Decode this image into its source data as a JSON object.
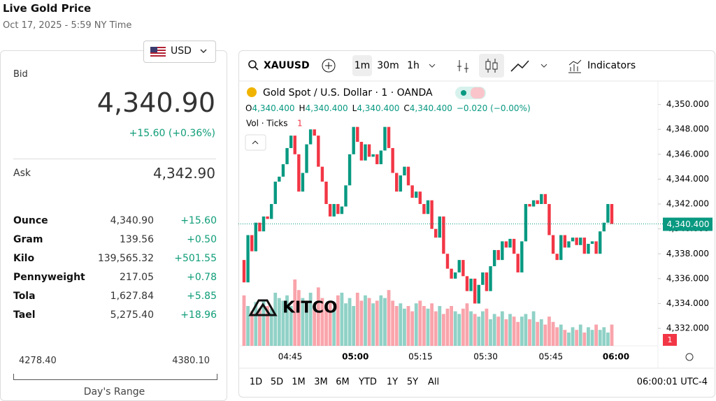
{
  "header": {
    "title": "Live Gold Price",
    "date": "Oct 17, 2025 - 5:59 NY Time"
  },
  "quote": {
    "currency": "USD",
    "bid_label": "Bid",
    "bid": "4,340.90",
    "change": "+15.60 (+0.36%)",
    "ask_label": "Ask",
    "ask": "4,342.90",
    "rows": [
      [
        "Ounce",
        "4,340.90",
        "+15.60"
      ],
      [
        "Gram",
        "139.56",
        "+0.50"
      ],
      [
        "Kilo",
        "139,565.32",
        "+501.55"
      ],
      [
        "Pennyweight",
        "217.05",
        "+0.78"
      ],
      [
        "Tola",
        "1,627.84",
        "+5.85"
      ],
      [
        "Tael",
        "5,275.40",
        "+18.96"
      ]
    ],
    "range_low": "4278.40",
    "range_high": "4380.10",
    "range_label": "Day's Range"
  },
  "chart": {
    "type": "candlestick",
    "symbol": "XAUUSD",
    "intervals": [
      "1m",
      "30m",
      "1h"
    ],
    "indicators": "Indicators",
    "title": "Gold Spot / U.S. Dollar · 1 · OANDA",
    "ohlc": [
      [
        "O",
        "4,340.400"
      ],
      [
        "H",
        "4,340.400"
      ],
      [
        "L",
        "4,340.400"
      ],
      [
        "C",
        "4,340.400"
      ]
    ],
    "ohlc_change": "−0.020 (−0.00%)",
    "vol_label": "Vol · Ticks",
    "vol_value": "1",
    "logo": "KITCO",
    "ylim": [
      4330.6,
      4352.0
    ],
    "yticks": [
      {
        "value": 4350,
        "label": "4,350.000"
      },
      {
        "value": 4348,
        "label": "4,348.000"
      },
      {
        "value": 4346,
        "label": "4,346.000"
      },
      {
        "value": 4344,
        "label": "4,344.000"
      },
      {
        "value": 4342,
        "label": "4,342.000"
      },
      {
        "value": 4340,
        "label": "4,340.000"
      },
      {
        "value": 4338,
        "label": "4,338.000"
      },
      {
        "value": 4336,
        "label": "4,336.000"
      },
      {
        "value": 4334,
        "label": "4,334.000"
      },
      {
        "value": 4332,
        "label": "4,332.000"
      }
    ],
    "last": {
      "value": 4340.4,
      "label": "4,340.400"
    },
    "times": [
      "04:45",
      "05:00",
      "05:15",
      "05:30",
      "05:45",
      "06:00"
    ],
    "up_color": "#089981",
    "down_color": "#f23645",
    "open": 4337.5,
    "closes": [
      4335.7,
      4339.5,
      4338.2,
      4340.5,
      4339.8,
      4341.0,
      4340.8,
      4342.0,
      4343.8,
      4344.2,
      4345.2,
      4346.5,
      4347.5,
      4346.0,
      4343.0,
      4344.5,
      4346.8,
      4348.0,
      4347.5,
      4345.0,
      4343.8,
      4342.0,
      4341.0,
      4342.0,
      4341.2,
      4341.8,
      4343.5,
      4346.0,
      4348.2,
      4347.0,
      4345.5,
      4346.8,
      4345.8,
      4346.0,
      4345.2,
      4346.3,
      4348.2,
      4346.5,
      4344.5,
      4343.0,
      4344.3,
      4345.0,
      4343.5,
      4342.5,
      4343.0,
      4342.0,
      4341.2,
      4342.3,
      4340.0,
      4339.3,
      4341.0,
      4338.0,
      4336.8,
      4336.0,
      4336.5,
      4337.5,
      4336.2,
      4335.0,
      4336.0,
      4334.0,
      4335.5,
      4336.5,
      4335.0,
      4337.0,
      4338.3,
      4337.5,
      4339.0,
      4338.5,
      4339.2,
      4338.0,
      4336.5,
      4339.0,
      4342.0,
      4341.8,
      4342.3,
      4342.0,
      4342.8,
      4342.0,
      4339.5,
      4338.0,
      4337.5,
      4339.5,
      4338.5,
      4339.0,
      4339.3,
      4338.7,
      4339.3,
      4338.0,
      4338.8,
      4339.0,
      4338.0,
      4339.8,
      4340.5,
      4342.0,
      4340.4
    ],
    "volumes": [
      38,
      30,
      26,
      33,
      28,
      35,
      30,
      28,
      40,
      36,
      34,
      38,
      30,
      50,
      42,
      36,
      34,
      40,
      30,
      44,
      36,
      30,
      34,
      28,
      38,
      40,
      32,
      36,
      30,
      40,
      34,
      38,
      36,
      32,
      34,
      38,
      36,
      42,
      34,
      30,
      32,
      28,
      30,
      26,
      32,
      34,
      30,
      28,
      32,
      26,
      30,
      24,
      28,
      30,
      26,
      24,
      28,
      32,
      26,
      24,
      22,
      26,
      28,
      20,
      24,
      22,
      26,
      20,
      24,
      22,
      18,
      22,
      24,
      20,
      26,
      18,
      20,
      16,
      22,
      18,
      14,
      16,
      12,
      10,
      14,
      12,
      16,
      10,
      14,
      12,
      16,
      12,
      14,
      10,
      16
    ],
    "ranges": [
      "1D",
      "5D",
      "1M",
      "3M",
      "6M",
      "YTD",
      "1Y",
      "5Y",
      "All"
    ],
    "clock": "06:00:01 UTC-4"
  }
}
